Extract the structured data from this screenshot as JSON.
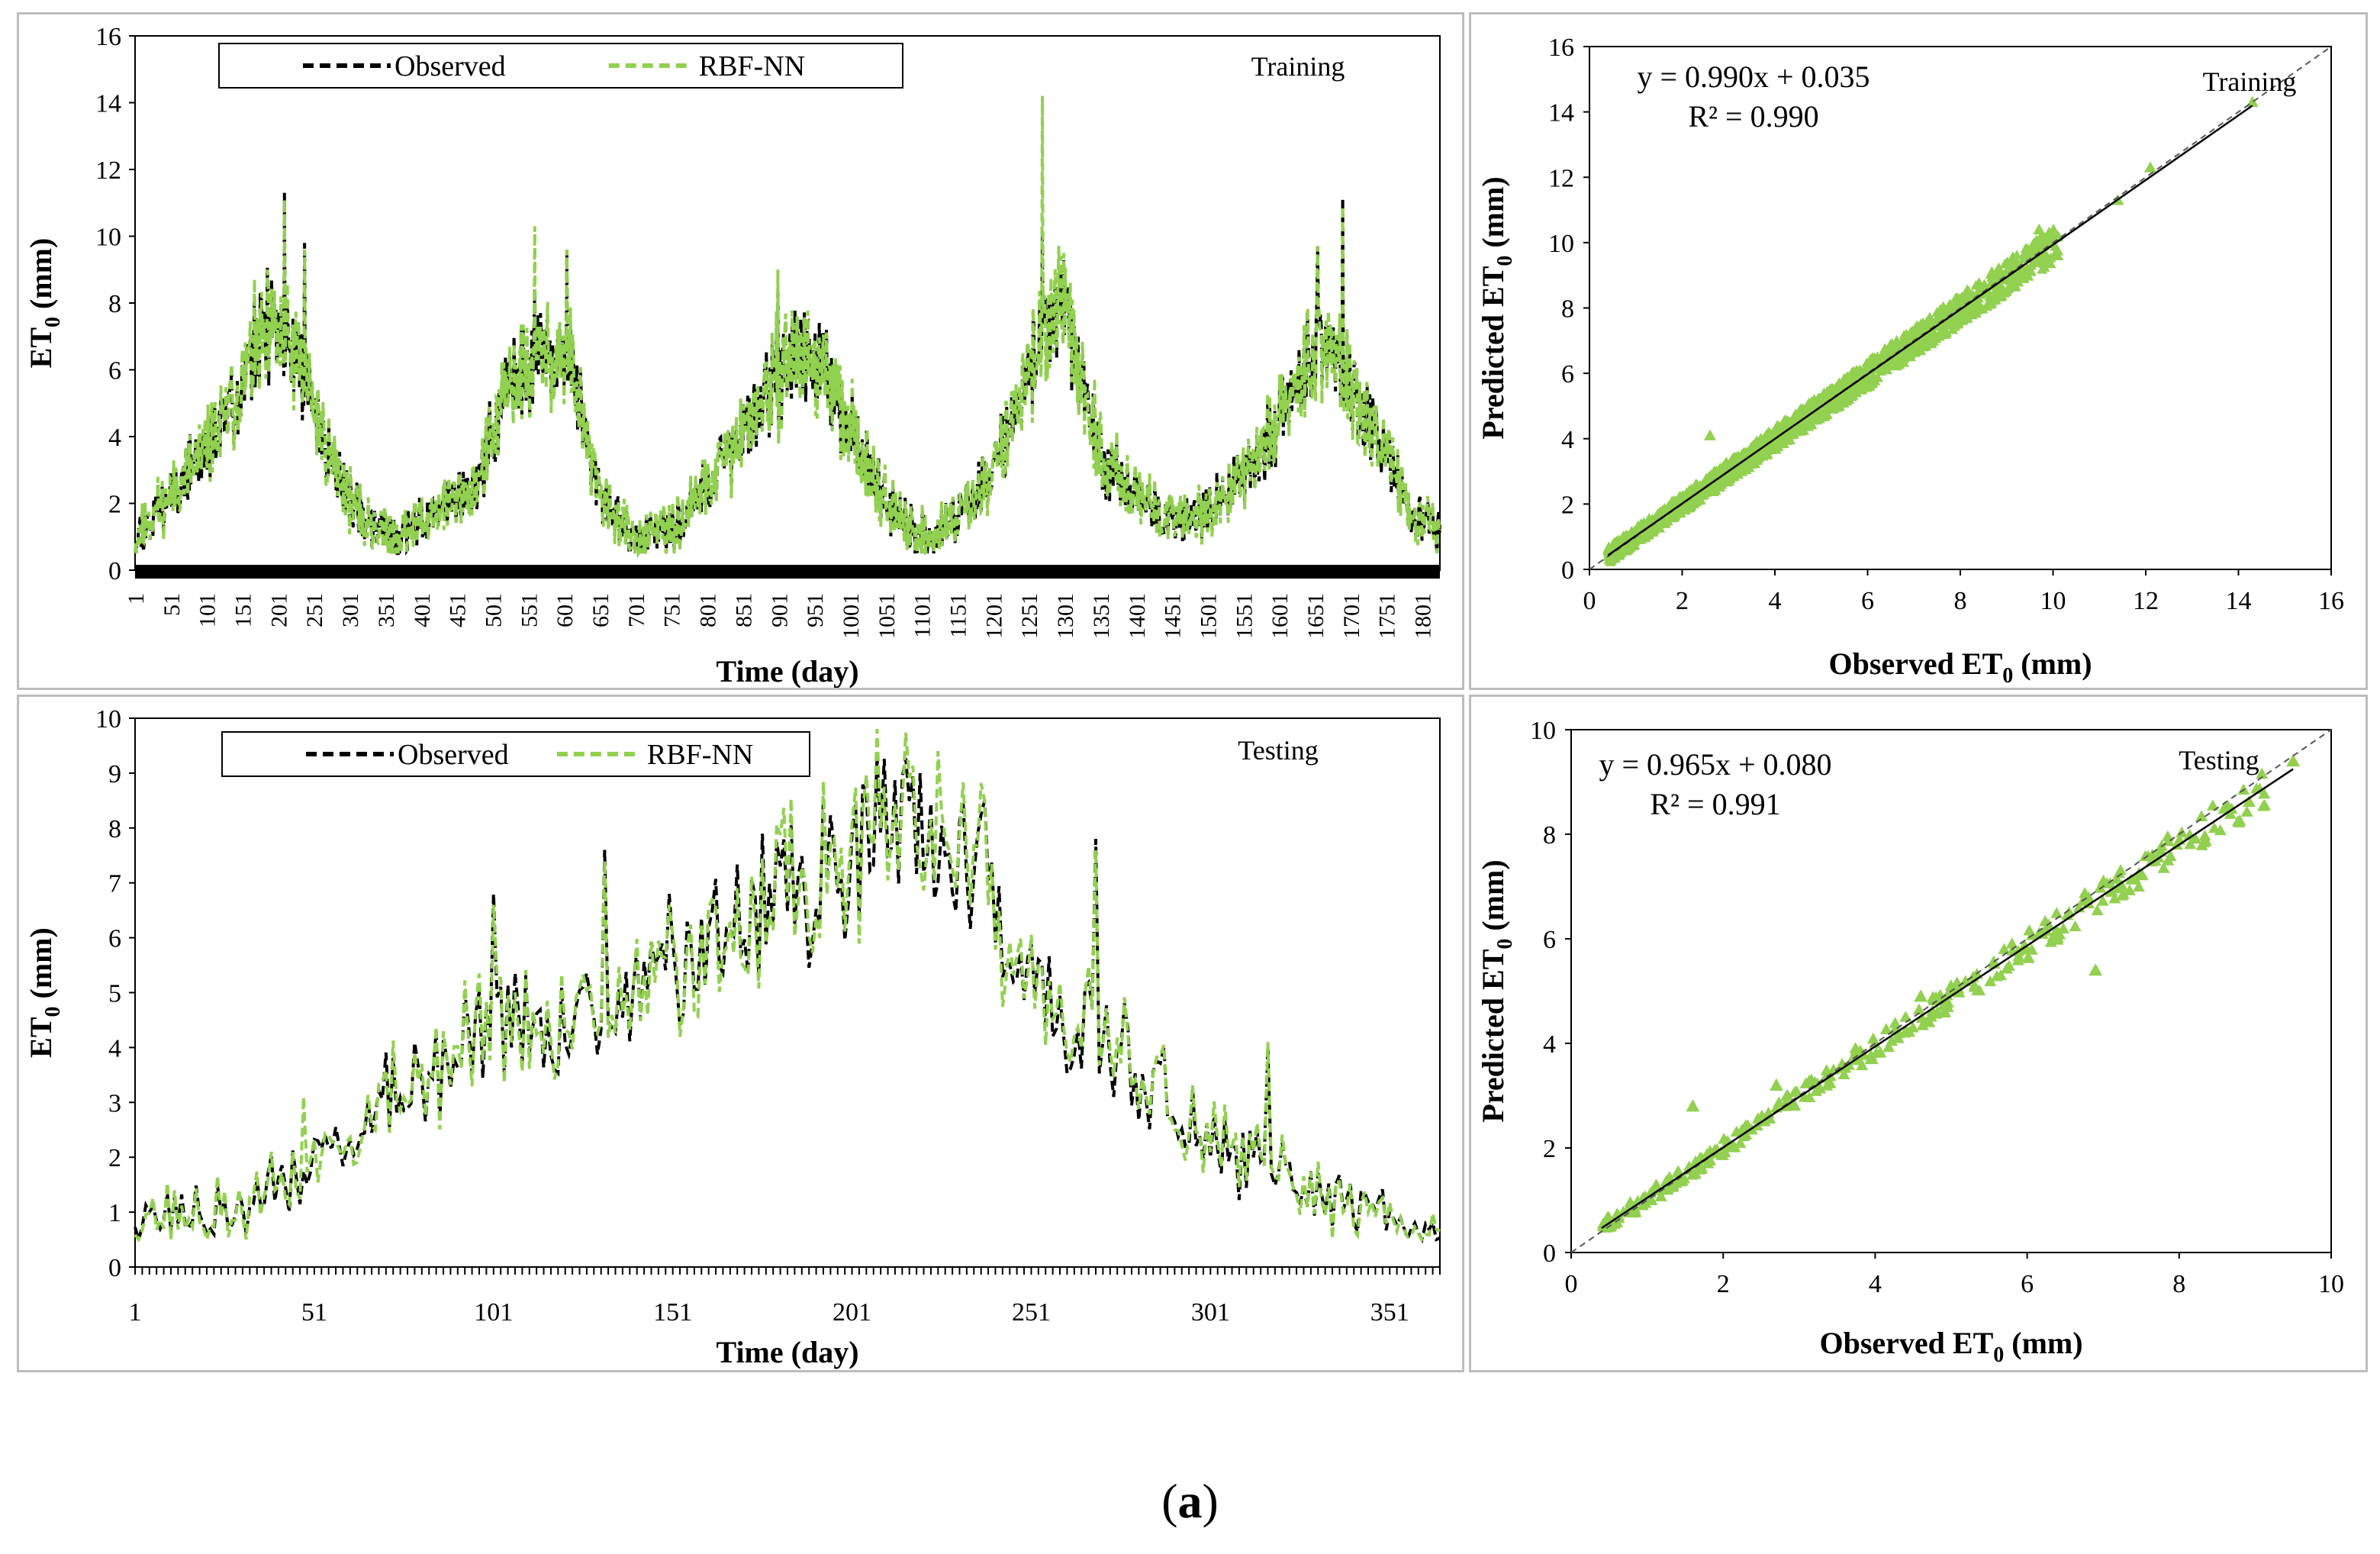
{
  "caption": {
    "open": "(",
    "label": "a",
    "close": ")"
  },
  "colors": {
    "observed": "#000000",
    "predicted": "#92d050",
    "axis": "#000000",
    "frame": "#bdbdbd"
  },
  "chart_data": [
    {
      "id": "train-ts",
      "type": "line",
      "title": "Training",
      "xlabel": "Time (day)",
      "ylabel_main": "ET",
      "ylabel_sub": "0",
      "ylabel_tail": " (mm)",
      "ylim": [
        0,
        16
      ],
      "yticks": [
        "0",
        "2",
        "4",
        "6",
        "8",
        "10",
        "12",
        "14",
        "16"
      ],
      "xlim": [
        1,
        1826
      ],
      "xticks": [
        "1",
        "51",
        "101",
        "151",
        "201",
        "251",
        "301",
        "351",
        "401",
        "451",
        "501",
        "551",
        "601",
        "651",
        "701",
        "751",
        "801",
        "851",
        "901",
        "951",
        "1001",
        "1051",
        "1101",
        "1151",
        "1201",
        "1251",
        "1301",
        "1351",
        "1401",
        "1451",
        "1501",
        "1551",
        "1601",
        "1651",
        "1701",
        "1751",
        "1801"
      ],
      "legend": [
        "Observed",
        "RBF-NN"
      ],
      "series": [
        {
          "name": "Observed",
          "seasonal": [
            [
              1,
              1.0
            ],
            [
              60,
              2.6
            ],
            [
              120,
              4.2
            ],
            [
              170,
              6.6
            ],
            [
              200,
              7.1
            ],
            [
              230,
              6.3
            ],
            [
              270,
              3.6
            ],
            [
              320,
              1.4
            ],
            [
              370,
              1.0
            ],
            [
              420,
              1.7
            ],
            [
              480,
              2.6
            ],
            [
              520,
              5.4
            ],
            [
              570,
              6.5
            ],
            [
              610,
              6.2
            ],
            [
              650,
              2.2
            ],
            [
              700,
              0.9
            ],
            [
              760,
              1.3
            ],
            [
              820,
              3.1
            ],
            [
              880,
              5.0
            ],
            [
              920,
              6.5
            ],
            [
              960,
              6.1
            ],
            [
              1010,
              3.9
            ],
            [
              1060,
              1.7
            ],
            [
              1110,
              0.9
            ],
            [
              1170,
              2.0
            ],
            [
              1220,
              3.9
            ],
            [
              1260,
              6.7
            ],
            [
              1300,
              7.6
            ],
            [
              1330,
              5.1
            ],
            [
              1360,
              3.1
            ],
            [
              1400,
              2.3
            ],
            [
              1460,
              1.4
            ],
            [
              1520,
              2.1
            ],
            [
              1580,
              3.6
            ],
            [
              1620,
              5.6
            ],
            [
              1660,
              7.2
            ],
            [
              1700,
              5.6
            ],
            [
              1750,
              3.4
            ],
            [
              1790,
              1.6
            ],
            [
              1826,
              1.0
            ]
          ],
          "peaks": [
            [
              186,
              9.1
            ],
            [
              210,
              11.3
            ],
            [
              238,
              9.8
            ],
            [
              560,
              8.4
            ],
            [
              605,
              9.6
            ],
            [
              900,
              8.3
            ],
            [
              1270,
              10.0
            ],
            [
              1300,
              9.3
            ],
            [
              1690,
              11.1
            ],
            [
              1655,
              9.7
            ]
          ]
        },
        {
          "name": "RBF-NN",
          "seasonal": "same",
          "peaks": [
            [
              186,
              9.0
            ],
            [
              210,
              11.1
            ],
            [
              238,
              9.6
            ],
            [
              560,
              10.3
            ],
            [
              605,
              9.6
            ],
            [
              900,
              9.0
            ],
            [
              1270,
              14.2
            ],
            [
              1300,
              9.5
            ],
            [
              1690,
              10.9
            ],
            [
              1655,
              9.7
            ]
          ]
        }
      ]
    },
    {
      "id": "train-scatter",
      "type": "scatter",
      "title": "Training",
      "equation": "y = 0.990x + 0.035",
      "r2": "R² = 0.990",
      "fit": {
        "slope": 0.99,
        "intercept": 0.035
      },
      "xlabel_main": "Observed ET",
      "xlabel_sub": "0",
      "xlabel_tail": " (mm)",
      "ylabel_main": "Predicted ET",
      "ylabel_sub": "0",
      "ylabel_tail": " (mm)",
      "xlim": [
        0,
        16
      ],
      "ylim": [
        0,
        16
      ],
      "xticks": [
        "0",
        "2",
        "4",
        "6",
        "8",
        "10",
        "12",
        "14",
        "16"
      ],
      "yticks": [
        "0",
        "2",
        "4",
        "6",
        "8",
        "10",
        "12",
        "14",
        "16"
      ],
      "range": [
        0.4,
        14.3
      ],
      "outliers": [
        [
          2.6,
          4.1
        ],
        [
          9.7,
          10.4
        ],
        [
          12.1,
          12.3
        ],
        [
          11.4,
          11.3
        ],
        [
          14.3,
          14.3
        ]
      ]
    },
    {
      "id": "test-ts",
      "type": "line",
      "title": "Testing",
      "xlabel": "Time (day)",
      "ylabel_main": "ET",
      "ylabel_sub": "0",
      "ylabel_tail": " (mm)",
      "ylim": [
        0,
        10
      ],
      "yticks": [
        "0",
        "1",
        "2",
        "3",
        "4",
        "5",
        "6",
        "7",
        "8",
        "9",
        "10"
      ],
      "xlim": [
        1,
        365
      ],
      "xticks": [
        "1",
        "51",
        "101",
        "151",
        "201",
        "251",
        "301",
        "351"
      ],
      "legend": [
        "Observed",
        "RBF-NN"
      ],
      "series": [
        {
          "name": "Observed",
          "seasonal": [
            [
              1,
              0.9
            ],
            [
              30,
              1.0
            ],
            [
              50,
              1.8
            ],
            [
              70,
              2.9
            ],
            [
              100,
              4.5
            ],
            [
              120,
              4.2
            ],
            [
              150,
              5.1
            ],
            [
              180,
              7.0
            ],
            [
              200,
              7.4
            ],
            [
              220,
              7.9
            ],
            [
              240,
              6.6
            ],
            [
              260,
              4.6
            ],
            [
              280,
              3.6
            ],
            [
              300,
              2.3
            ],
            [
              320,
              1.6
            ],
            [
              340,
              1.1
            ],
            [
              365,
              0.8
            ]
          ],
          "peaks": [
            [
              52,
              2.3
            ],
            [
              101,
              6.8
            ],
            [
              132,
              7.6
            ],
            [
              150,
              6.8
            ],
            [
              220,
              9.0
            ],
            [
              238,
              8.5
            ],
            [
              269,
              7.8
            ],
            [
              317,
              4.0
            ]
          ]
        },
        {
          "name": "RBF-NN",
          "seasonal": "same",
          "peaks": [
            [
              48,
              3.1
            ],
            [
              101,
              6.6
            ],
            [
              132,
              7.4
            ],
            [
              150,
              6.6
            ],
            [
              225,
              9.4
            ],
            [
              238,
              8.5
            ],
            [
              269,
              7.6
            ],
            [
              317,
              4.1
            ]
          ]
        }
      ]
    },
    {
      "id": "test-scatter",
      "type": "scatter",
      "title": "Testing",
      "equation": "y = 0.965x + 0.080",
      "r2": "R² = 0.991",
      "fit": {
        "slope": 0.965,
        "intercept": 0.08
      },
      "xlabel_main": "Observed ET",
      "xlabel_sub": "0",
      "xlabel_tail": " (mm)",
      "ylabel_main": "Predicted ET",
      "ylabel_sub": "0",
      "ylabel_tail": " (mm)",
      "xlim": [
        0,
        10
      ],
      "ylim": [
        0,
        10
      ],
      "xticks": [
        "0",
        "2",
        "4",
        "6",
        "8",
        "10"
      ],
      "yticks": [
        "0",
        "2",
        "4",
        "6",
        "8",
        "10"
      ],
      "range": [
        0.4,
        9.5
      ],
      "outliers": [
        [
          1.6,
          2.8
        ],
        [
          6.9,
          5.4
        ],
        [
          2.7,
          3.2
        ],
        [
          4.6,
          4.9
        ],
        [
          9.5,
          9.4
        ],
        [
          8.6,
          8.5
        ]
      ]
    }
  ]
}
